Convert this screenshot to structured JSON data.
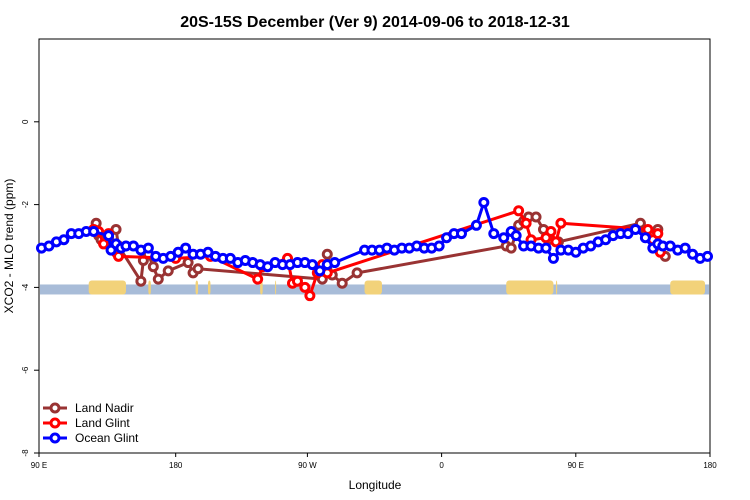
{
  "chart_data": {
    "type": "line",
    "title": "20S-15S December (Ver 9)   2014-09-06 to 2018-12-31",
    "xlabel": "Longitude",
    "ylabel": "XCO2 - MLO trend (ppm)",
    "xlim": [
      -90,
      180
    ],
    "ylim": [
      -8,
      2
    ],
    "x_ticks": [
      {
        "value": -90,
        "label": "90 E"
      },
      {
        "value": -35,
        "label": "180"
      },
      {
        "value": 18,
        "label": "90 W"
      },
      {
        "value": 72,
        "label": "0"
      },
      {
        "value": 126,
        "label": "90 E"
      },
      {
        "value": 180,
        "label": "180"
      }
    ],
    "y_ticks": [
      0,
      -2,
      -4,
      -6,
      -8
    ],
    "legend": {
      "position": "bottom-left"
    },
    "land_bar": {
      "y": -4.05,
      "color_ocean": "#a8bcd8",
      "color_land": "#f2d27a",
      "land_spans": [
        [
          -70,
          -55
        ],
        [
          -46,
          -45
        ],
        [
          -27,
          -26
        ],
        [
          -22,
          -21
        ],
        [
          -1,
          0
        ],
        [
          5,
          5.3
        ],
        [
          41,
          48
        ],
        [
          98,
          117
        ],
        [
          118,
          118.5
        ],
        [
          164,
          178
        ]
      ]
    },
    "series": [
      {
        "name": "Land Nadir",
        "color": "#993333",
        "points": [
          [
            -67,
            -2.45
          ],
          [
            -66,
            -2.75
          ],
          [
            -65,
            -2.85
          ],
          [
            -62,
            -2.8
          ],
          [
            -59,
            -2.6
          ],
          [
            -58,
            -3.0
          ],
          [
            -49,
            -3.85
          ],
          [
            -48,
            -3.35
          ],
          [
            -46,
            -3.2
          ],
          [
            -44,
            -3.5
          ],
          [
            -42,
            -3.8
          ],
          [
            -38,
            -3.6
          ],
          [
            -30,
            -3.4
          ],
          [
            -28,
            -3.65
          ],
          [
            -26,
            -3.55
          ],
          [
            24,
            -3.8
          ],
          [
            26,
            -3.2
          ],
          [
            28,
            -3.7
          ],
          [
            32,
            -3.9
          ],
          [
            38,
            -3.65
          ],
          [
            98,
            -3.0
          ],
          [
            100,
            -3.05
          ],
          [
            103,
            -2.5
          ],
          [
            105,
            -2.4
          ],
          [
            107,
            -2.3
          ],
          [
            110,
            -2.3
          ],
          [
            113,
            -2.6
          ],
          [
            115,
            -2.85
          ],
          [
            119,
            -2.9
          ],
          [
            152,
            -2.45
          ],
          [
            154,
            -2.7
          ],
          [
            156,
            -2.75
          ],
          [
            159,
            -2.6
          ],
          [
            160,
            -3.0
          ],
          [
            162,
            -3.25
          ]
        ]
      },
      {
        "name": "Land Glint",
        "color": "#ff0000",
        "points": [
          [
            -68,
            -2.6
          ],
          [
            -66,
            -2.65
          ],
          [
            -64,
            -2.95
          ],
          [
            -62,
            -2.7
          ],
          [
            -59,
            -3.15
          ],
          [
            -58,
            -3.25
          ],
          [
            -35,
            -3.3
          ],
          [
            -21,
            -3.25
          ],
          [
            -2,
            -3.8
          ],
          [
            0,
            -3.5
          ],
          [
            10,
            -3.3
          ],
          [
            12,
            -3.9
          ],
          [
            14,
            -3.85
          ],
          [
            17,
            -4.0
          ],
          [
            19,
            -4.2
          ],
          [
            22,
            -3.65
          ],
          [
            24,
            -3.45
          ],
          [
            26,
            -3.65
          ],
          [
            103,
            -2.15
          ],
          [
            106,
            -2.45
          ],
          [
            108,
            -2.85
          ],
          [
            114,
            -2.8
          ],
          [
            116,
            -2.65
          ],
          [
            118,
            -2.9
          ],
          [
            120,
            -2.45
          ],
          [
            155,
            -2.6
          ],
          [
            157,
            -2.85
          ],
          [
            159,
            -2.7
          ],
          [
            160,
            -3.15
          ]
        ]
      },
      {
        "name": "Ocean Glint",
        "color": "#0000ff",
        "points": [
          [
            -89,
            -3.05
          ],
          [
            -86,
            -3.0
          ],
          [
            -83,
            -2.9
          ],
          [
            -80,
            -2.85
          ],
          [
            -77,
            -2.7
          ],
          [
            -74,
            -2.7
          ],
          [
            -71,
            -2.65
          ],
          [
            -68,
            -2.65
          ],
          [
            -62,
            -2.75
          ],
          [
            -61,
            -3.1
          ],
          [
            -59,
            -2.95
          ],
          [
            -57,
            -3.05
          ],
          [
            -55,
            -3.0
          ],
          [
            -52,
            -3.0
          ],
          [
            -49,
            -3.1
          ],
          [
            -46,
            -3.05
          ],
          [
            -43,
            -3.25
          ],
          [
            -40,
            -3.3
          ],
          [
            -37,
            -3.25
          ],
          [
            -34,
            -3.15
          ],
          [
            -31,
            -3.05
          ],
          [
            -28,
            -3.2
          ],
          [
            -25,
            -3.2
          ],
          [
            -22,
            -3.15
          ],
          [
            -19,
            -3.25
          ],
          [
            -16,
            -3.3
          ],
          [
            -13,
            -3.3
          ],
          [
            -10,
            -3.4
          ],
          [
            -7,
            -3.35
          ],
          [
            -4,
            -3.4
          ],
          [
            -1,
            -3.45
          ],
          [
            2,
            -3.5
          ],
          [
            5,
            -3.4
          ],
          [
            8,
            -3.45
          ],
          [
            11,
            -3.45
          ],
          [
            14,
            -3.4
          ],
          [
            17,
            -3.4
          ],
          [
            20,
            -3.45
          ],
          [
            23,
            -3.6
          ],
          [
            26,
            -3.45
          ],
          [
            29,
            -3.4
          ],
          [
            41,
            -3.1
          ],
          [
            44,
            -3.1
          ],
          [
            47,
            -3.1
          ],
          [
            50,
            -3.05
          ],
          [
            53,
            -3.1
          ],
          [
            56,
            -3.05
          ],
          [
            59,
            -3.05
          ],
          [
            62,
            -3.0
          ],
          [
            65,
            -3.05
          ],
          [
            68,
            -3.05
          ],
          [
            71,
            -3.0
          ],
          [
            74,
            -2.8
          ],
          [
            77,
            -2.7
          ],
          [
            80,
            -2.7
          ],
          [
            86,
            -2.5
          ],
          [
            89,
            -1.95
          ],
          [
            93,
            -2.7
          ],
          [
            97,
            -2.8
          ],
          [
            100,
            -2.65
          ],
          [
            102,
            -2.75
          ],
          [
            105,
            -3.0
          ],
          [
            108,
            -3.0
          ],
          [
            111,
            -3.05
          ],
          [
            114,
            -3.05
          ],
          [
            117,
            -3.3
          ],
          [
            120,
            -3.1
          ],
          [
            123,
            -3.1
          ],
          [
            126,
            -3.15
          ],
          [
            129,
            -3.05
          ],
          [
            132,
            -3.0
          ],
          [
            135,
            -2.9
          ],
          [
            138,
            -2.85
          ],
          [
            141,
            -2.75
          ],
          [
            144,
            -2.7
          ],
          [
            147,
            -2.7
          ],
          [
            150,
            -2.6
          ],
          [
            154,
            -2.8
          ],
          [
            157,
            -3.05
          ],
          [
            159,
            -2.95
          ],
          [
            161,
            -3.0
          ],
          [
            164,
            -3.0
          ],
          [
            167,
            -3.1
          ],
          [
            170,
            -3.05
          ],
          [
            173,
            -3.2
          ],
          [
            176,
            -3.3
          ],
          [
            179,
            -3.25
          ]
        ]
      }
    ]
  }
}
